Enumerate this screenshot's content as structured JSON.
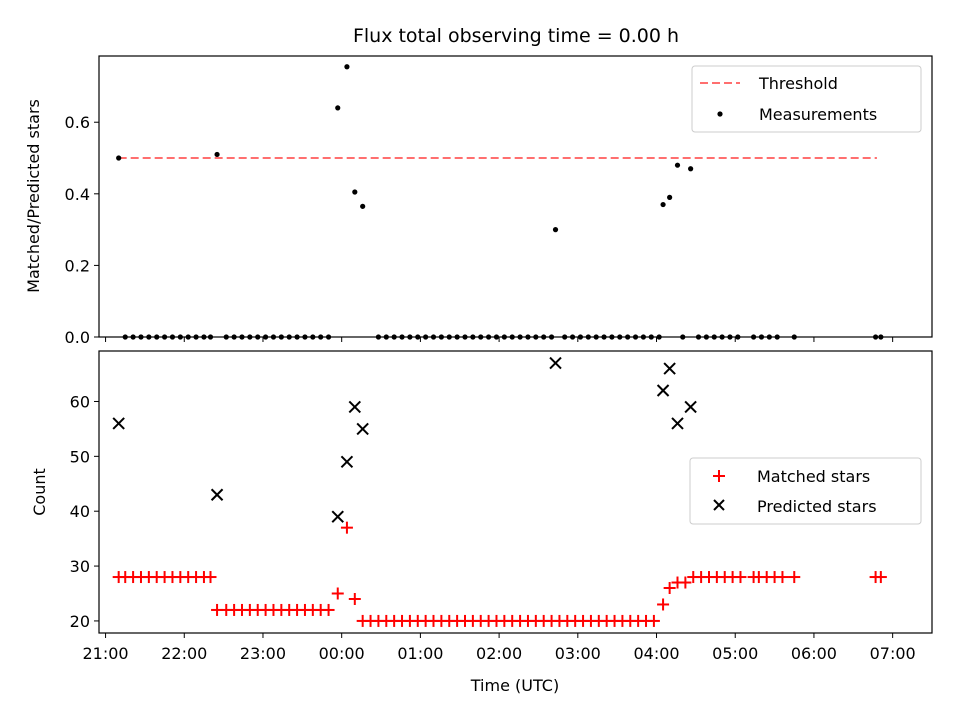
{
  "chart_data": [
    {
      "type": "scatter",
      "title": "Flux total observing time = 0.00 h",
      "xlabel": "",
      "ylabel": "Matched/Predicted stars",
      "ylim": [
        0,
        0.785
      ],
      "xlim": [
        "20:55",
        "07:30"
      ],
      "yticks": [
        "0.0",
        "0.2",
        "0.4",
        "0.6"
      ],
      "legend_position": "top-right",
      "threshold": {
        "name": "Threshold",
        "value": 0.5,
        "x_start": "21:10",
        "x_end": "06:48",
        "color": "#ff6f6f"
      },
      "series": [
        {
          "name": "Measurements",
          "color": "#000000",
          "points": [
            [
              "21:10",
              0.5
            ],
            [
              "22:25",
              0.51
            ],
            [
              "23:57",
              0.64
            ],
            [
              "00:04",
              0.755
            ],
            [
              "00:10",
              0.405
            ],
            [
              "00:16",
              0.365
            ],
            [
              "02:43",
              0.3
            ],
            [
              "04:05",
              0.37
            ],
            [
              "04:10",
              0.39
            ],
            [
              "04:16",
              0.48
            ],
            [
              "04:26",
              0.47
            ]
          ],
          "zero_points": [
            "21:15",
            "21:21",
            "21:27",
            "21:33",
            "21:39",
            "21:45",
            "21:51",
            "21:57",
            "22:03",
            "22:09",
            "22:15",
            "22:20",
            "22:32",
            "22:38",
            "22:44",
            "22:50",
            "22:56",
            "23:02",
            "23:08",
            "23:14",
            "23:20",
            "23:26",
            "23:32",
            "23:38",
            "23:44",
            "23:50",
            "00:28",
            "00:34",
            "00:40",
            "00:46",
            "00:52",
            "00:58",
            "01:04",
            "01:10",
            "01:16",
            "01:22",
            "01:28",
            "01:34",
            "01:40",
            "01:46",
            "01:52",
            "01:58",
            "02:04",
            "02:10",
            "02:16",
            "02:22",
            "02:28",
            "02:34",
            "02:40",
            "02:50",
            "02:56",
            "03:02",
            "03:08",
            "03:14",
            "03:20",
            "03:26",
            "03:32",
            "03:38",
            "03:44",
            "03:50",
            "03:56",
            "04:02",
            "04:20",
            "04:32",
            "04:38",
            "04:44",
            "04:50",
            "04:56",
            "05:02",
            "05:14",
            "05:20",
            "05:26",
            "05:32",
            "05:45",
            "06:47",
            "06:51"
          ]
        }
      ]
    },
    {
      "type": "scatter",
      "title": "",
      "xlabel": "Time (UTC)",
      "ylabel": "Count",
      "ylim": [
        17.8,
        69.2
      ],
      "xlim": [
        "20:55",
        "07:30"
      ],
      "yticks": [
        "20",
        "30",
        "40",
        "50",
        "60"
      ],
      "xticks": [
        "21:00",
        "22:00",
        "23:00",
        "00:00",
        "01:00",
        "02:00",
        "03:00",
        "04:00",
        "05:00",
        "06:00",
        "07:00"
      ],
      "legend_position": "center-right",
      "series": [
        {
          "name": "Matched stars",
          "marker": "plus",
          "color": "#ff0000",
          "points": [
            [
              "21:10",
              28
            ],
            [
              "21:15",
              28
            ],
            [
              "21:21",
              28
            ],
            [
              "21:27",
              28
            ],
            [
              "21:33",
              28
            ],
            [
              "21:39",
              28
            ],
            [
              "21:45",
              28
            ],
            [
              "21:51",
              28
            ],
            [
              "21:57",
              28
            ],
            [
              "22:03",
              28
            ],
            [
              "22:09",
              28
            ],
            [
              "22:15",
              28
            ],
            [
              "22:20",
              28
            ],
            [
              "22:25",
              22
            ],
            [
              "22:32",
              22
            ],
            [
              "22:38",
              22
            ],
            [
              "22:44",
              22
            ],
            [
              "22:50",
              22
            ],
            [
              "22:56",
              22
            ],
            [
              "23:02",
              22
            ],
            [
              "23:08",
              22
            ],
            [
              "23:14",
              22
            ],
            [
              "23:20",
              22
            ],
            [
              "23:26",
              22
            ],
            [
              "23:32",
              22
            ],
            [
              "23:38",
              22
            ],
            [
              "23:44",
              22
            ],
            [
              "23:50",
              22
            ],
            [
              "23:57",
              25
            ],
            [
              "00:04",
              37
            ],
            [
              "00:10",
              24
            ],
            [
              "00:16",
              20
            ],
            [
              "00:22",
              20
            ],
            [
              "00:28",
              20
            ],
            [
              "00:34",
              20
            ],
            [
              "00:40",
              20
            ],
            [
              "00:46",
              20
            ],
            [
              "00:52",
              20
            ],
            [
              "00:58",
              20
            ],
            [
              "01:04",
              20
            ],
            [
              "01:10",
              20
            ],
            [
              "01:16",
              20
            ],
            [
              "01:22",
              20
            ],
            [
              "01:28",
              20
            ],
            [
              "01:34",
              20
            ],
            [
              "01:40",
              20
            ],
            [
              "01:46",
              20
            ],
            [
              "01:52",
              20
            ],
            [
              "01:58",
              20
            ],
            [
              "02:04",
              20
            ],
            [
              "02:10",
              20
            ],
            [
              "02:16",
              20
            ],
            [
              "02:22",
              20
            ],
            [
              "02:28",
              20
            ],
            [
              "02:34",
              20
            ],
            [
              "02:40",
              20
            ],
            [
              "02:46",
              20
            ],
            [
              "02:52",
              20
            ],
            [
              "02:58",
              20
            ],
            [
              "03:04",
              20
            ],
            [
              "03:10",
              20
            ],
            [
              "03:16",
              20
            ],
            [
              "03:22",
              20
            ],
            [
              "03:28",
              20
            ],
            [
              "03:34",
              20
            ],
            [
              "03:40",
              20
            ],
            [
              "03:46",
              20
            ],
            [
              "03:52",
              20
            ],
            [
              "03:58",
              20
            ],
            [
              "04:05",
              23
            ],
            [
              "04:10",
              26
            ],
            [
              "04:16",
              27
            ],
            [
              "04:22",
              27
            ],
            [
              "04:28",
              28
            ],
            [
              "04:34",
              28
            ],
            [
              "04:40",
              28
            ],
            [
              "04:46",
              28
            ],
            [
              "04:52",
              28
            ],
            [
              "04:58",
              28
            ],
            [
              "05:04",
              28
            ],
            [
              "05:14",
              28
            ],
            [
              "05:18",
              28
            ],
            [
              "05:24",
              28
            ],
            [
              "05:30",
              28
            ],
            [
              "05:36",
              28
            ],
            [
              "05:45",
              28
            ],
            [
              "06:47",
              28
            ],
            [
              "06:51",
              28
            ]
          ]
        },
        {
          "name": "Predicted stars",
          "marker": "x",
          "color": "#000000",
          "points": [
            [
              "21:10",
              56
            ],
            [
              "22:25",
              43
            ],
            [
              "23:57",
              39
            ],
            [
              "00:04",
              49
            ],
            [
              "00:10",
              59
            ],
            [
              "00:16",
              55
            ],
            [
              "02:43",
              67
            ],
            [
              "04:05",
              62
            ],
            [
              "04:10",
              66
            ],
            [
              "04:16",
              56
            ],
            [
              "04:26",
              59
            ]
          ]
        }
      ]
    }
  ]
}
